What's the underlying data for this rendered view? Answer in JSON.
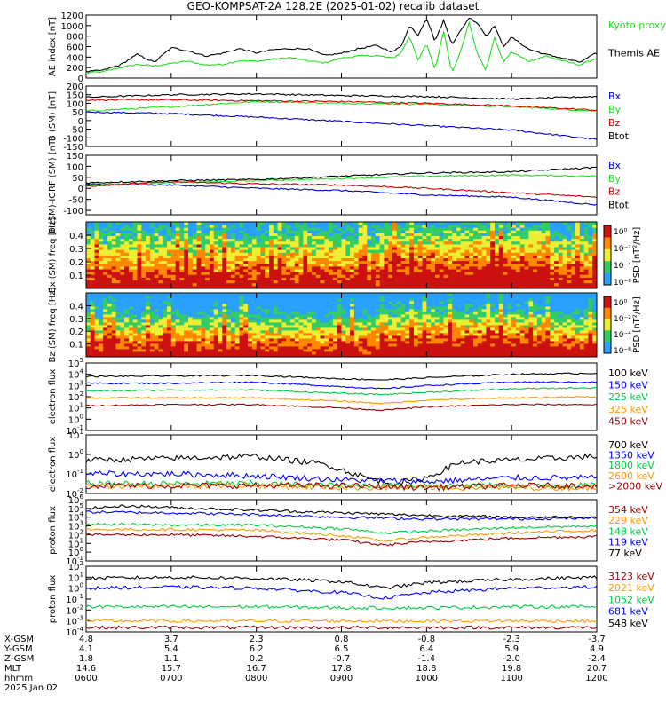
{
  "title": "GEO-KOMPSAT-2A 128.2E (2025-01-02) recalib dataset",
  "chart_data": [
    {
      "type": "line",
      "ylabel": "AE index [nT]",
      "ylim": [
        0,
        1200
      ],
      "yticks": [
        "0",
        "200",
        "400",
        "600",
        "800",
        "1000",
        "1200"
      ],
      "series": [
        {
          "name": "Kyoto proxy AE",
          "color": "#22dd22",
          "x": [
            6.0,
            6.2,
            6.4,
            6.6,
            6.8,
            7.0,
            7.2,
            7.4,
            7.6,
            7.8,
            8.0,
            8.2,
            8.4,
            8.6,
            8.8,
            9.0,
            9.2,
            9.4,
            9.6,
            9.7,
            9.8,
            9.9,
            10.0,
            10.1,
            10.2,
            10.3,
            10.4,
            10.5,
            10.6,
            10.7,
            10.8,
            10.9,
            11.0,
            11.2,
            11.4,
            11.6,
            11.8,
            12.0
          ],
          "y": [
            100,
            120,
            200,
            260,
            230,
            280,
            320,
            250,
            260,
            330,
            320,
            360,
            390,
            330,
            290,
            380,
            420,
            430,
            380,
            480,
            800,
            350,
            650,
            150,
            900,
            100,
            520,
            1050,
            450,
            150,
            780,
            300,
            500,
            320,
            420,
            330,
            250,
            380
          ]
        },
        {
          "name": "Themis AE",
          "color": "#000000",
          "x": [
            6.0,
            6.2,
            6.4,
            6.6,
            6.8,
            7.0,
            7.2,
            7.4,
            7.6,
            7.8,
            8.0,
            8.2,
            8.4,
            8.6,
            8.8,
            9.0,
            9.2,
            9.4,
            9.6,
            9.7,
            9.8,
            9.9,
            10.0,
            10.1,
            10.2,
            10.3,
            10.4,
            10.5,
            10.6,
            10.7,
            10.8,
            10.9,
            11.0,
            11.2,
            11.4,
            11.6,
            11.8,
            12.0
          ],
          "y": [
            120,
            150,
            250,
            450,
            300,
            580,
            520,
            420,
            470,
            560,
            480,
            540,
            560,
            560,
            430,
            470,
            560,
            620,
            500,
            600,
            1000,
            820,
            1150,
            700,
            1100,
            650,
            900,
            1150,
            1050,
            800,
            1000,
            600,
            780,
            550,
            450,
            380,
            300,
            480
          ]
        }
      ]
    },
    {
      "type": "line",
      "ylabel": "B (SM) [nT]",
      "ylim": [
        -150,
        200
      ],
      "yticks": [
        "-150",
        "-100",
        "-50",
        "0",
        "50",
        "100",
        "150",
        "200"
      ],
      "series": [
        {
          "name": "Bx",
          "color": "#0000cc",
          "x": [
            6,
            7,
            8,
            9,
            10,
            11,
            12
          ],
          "y": [
            50,
            40,
            20,
            -5,
            -30,
            -55,
            -110
          ]
        },
        {
          "name": "By",
          "color": "#22dd22",
          "x": [
            6,
            7,
            8,
            9,
            10,
            11,
            12
          ],
          "y": [
            55,
            80,
            110,
            100,
            95,
            80,
            55
          ]
        },
        {
          "name": "Bz",
          "color": "#cc0000",
          "x": [
            6,
            7,
            8,
            9,
            10,
            11,
            12
          ],
          "y": [
            120,
            120,
            115,
            110,
            100,
            85,
            60
          ]
        },
        {
          "name": "Btot",
          "color": "#000000",
          "x": [
            6,
            7,
            8,
            9,
            10,
            11,
            12
          ],
          "y": [
            135,
            150,
            155,
            145,
            140,
            125,
            140
          ]
        }
      ]
    },
    {
      "type": "line",
      "ylabel": "B (SM)-IGRF (SM) [nT]",
      "ylim": [
        -120,
        150
      ],
      "yticks": [
        "-100",
        "-50",
        "0",
        "50",
        "100",
        "150"
      ],
      "series": [
        {
          "name": "Bx",
          "color": "#0000cc",
          "x": [
            6,
            7,
            8,
            9,
            10,
            11,
            12
          ],
          "y": [
            20,
            15,
            0,
            -10,
            -30,
            -40,
            -75
          ]
        },
        {
          "name": "By",
          "color": "#22dd22",
          "x": [
            6,
            7,
            8,
            9,
            10,
            11,
            12
          ],
          "y": [
            15,
            25,
            35,
            45,
            55,
            60,
            55
          ]
        },
        {
          "name": "Bz",
          "color": "#cc0000",
          "x": [
            6,
            7,
            8,
            9,
            10,
            11,
            12
          ],
          "y": [
            10,
            30,
            20,
            15,
            0,
            -20,
            -40
          ]
        },
        {
          "name": "Btot",
          "color": "#000000",
          "x": [
            6,
            7,
            8,
            9,
            10,
            11,
            12
          ],
          "y": [
            25,
            35,
            40,
            55,
            70,
            75,
            95
          ]
        }
      ]
    },
    {
      "type": "heatmap",
      "ylabel": "Bx (SM) freq [Hz]",
      "yticks": [
        "0.1",
        "0.2",
        "0.3",
        "0.4"
      ],
      "colorbar_label": "PSD [nT²/Hz]",
      "colorbar_ticks": [
        "10⁰",
        "10⁻²",
        "10⁻⁴",
        "10⁻⁶"
      ]
    },
    {
      "type": "heatmap",
      "ylabel": "Bz (SM) freq [Hz]",
      "yticks": [
        "0.1",
        "0.2",
        "0.3",
        "0.4"
      ],
      "colorbar_label": "PSD [nT²/Hz]",
      "colorbar_ticks": [
        "10⁰",
        "10⁻²",
        "10⁻⁴",
        "10⁻⁶"
      ]
    },
    {
      "type": "line",
      "log": true,
      "ylabel": "electron flux",
      "ylim_exp": [
        -1,
        5
      ],
      "series": [
        {
          "name": "100 keV",
          "color": "#000000",
          "x": [
            6,
            7,
            8,
            9,
            9.5,
            10,
            11,
            12
          ],
          "y": [
            3.8,
            3.85,
            3.9,
            3.6,
            3.5,
            3.7,
            4.0,
            4.1
          ]
        },
        {
          "name": "150 keV",
          "color": "#0000ff",
          "x": [
            6,
            7,
            8,
            9,
            9.5,
            10,
            11,
            12
          ],
          "y": [
            3.2,
            3.2,
            3.3,
            2.9,
            2.7,
            3.0,
            3.3,
            3.3
          ]
        },
        {
          "name": "225 keV",
          "color": "#00cc44",
          "x": [
            6,
            7,
            8,
            9,
            9.5,
            10,
            11,
            12
          ],
          "y": [
            2.5,
            2.6,
            2.6,
            2.3,
            2.2,
            2.4,
            2.7,
            2.8
          ]
        },
        {
          "name": "325 keV",
          "color": "#ff9900",
          "x": [
            6,
            7,
            8,
            9,
            9.5,
            10,
            11,
            12
          ],
          "y": [
            1.9,
            1.9,
            1.9,
            1.6,
            1.4,
            1.7,
            1.9,
            2.0
          ]
        },
        {
          "name": "450 keV",
          "color": "#990000",
          "x": [
            6,
            7,
            8,
            9,
            9.5,
            10,
            11,
            12
          ],
          "y": [
            1.2,
            1.3,
            1.3,
            1.0,
            0.8,
            1.1,
            1.3,
            1.3
          ]
        }
      ]
    },
    {
      "type": "line",
      "log": true,
      "ylabel": "electron flux",
      "ylim_exp": [
        -2,
        1
      ],
      "series": [
        {
          "name": "700 keV",
          "color": "#000000",
          "x": [
            6,
            7,
            8,
            8.8,
            9.3,
            9.6,
            10,
            10.4,
            11,
            12
          ],
          "y": [
            -0.3,
            -0.2,
            -0.1,
            -0.5,
            -1.2,
            -1.5,
            -1.2,
            -0.4,
            -0.3,
            -0.1
          ]
        },
        {
          "name": "1350 keV",
          "color": "#0000ff",
          "x": [
            6,
            7,
            8,
            9,
            10,
            11,
            12
          ],
          "y": [
            -1.0,
            -1.0,
            -1.1,
            -1.3,
            -1.4,
            -1.2,
            -1.2
          ]
        },
        {
          "name": "1800 keV",
          "color": "#00cc44",
          "x": [
            6,
            7,
            8,
            9,
            10,
            11,
            12
          ],
          "y": [
            -1.5,
            -1.5,
            -1.5,
            -1.6,
            -1.6,
            -1.6,
            -1.6
          ]
        },
        {
          "name": "2600 keV",
          "color": "#ff9900",
          "x": [
            6,
            7,
            8,
            9,
            10,
            11,
            12
          ],
          "y": [
            -1.6,
            -1.6,
            -1.6,
            -1.7,
            -1.7,
            -1.7,
            -1.7
          ]
        },
        {
          "name": ">2000 keV",
          "color": "#990000",
          "x": [
            6,
            7,
            8,
            9,
            10,
            11,
            12
          ],
          "y": [
            -1.6,
            -1.6,
            -1.6,
            -1.6,
            -1.7,
            -1.6,
            -1.6
          ]
        }
      ]
    },
    {
      "type": "line",
      "log": true,
      "ylabel": "proton flux",
      "ylim_exp": [
        -1,
        6
      ],
      "series": [
        {
          "name": "354 keV",
          "color": "#990000",
          "x": [
            6,
            7,
            8,
            9,
            9.5,
            10,
            11,
            12
          ],
          "y": [
            2.0,
            2.0,
            1.8,
            1.4,
            0.8,
            1.2,
            1.6,
            1.8
          ]
        },
        {
          "name": "229 keV",
          "color": "#ff9900",
          "x": [
            6,
            7,
            8,
            9,
            9.5,
            10,
            11,
            12
          ],
          "y": [
            2.6,
            2.6,
            2.5,
            1.9,
            1.3,
            1.7,
            2.2,
            2.5
          ]
        },
        {
          "name": "148 keV",
          "color": "#00cc44",
          "x": [
            6,
            7,
            8,
            9,
            9.5,
            10,
            11,
            12
          ],
          "y": [
            3.2,
            3.1,
            3.1,
            2.7,
            2.2,
            2.4,
            2.8,
            3.0
          ]
        },
        {
          "name": "119 keV",
          "color": "#0000ff",
          "x": [
            6,
            7,
            8,
            9,
            10,
            11,
            12
          ],
          "y": [
            4.6,
            4.5,
            4.3,
            4.0,
            3.8,
            3.8,
            3.9
          ]
        },
        {
          "name": "77 keV",
          "color": "#000000",
          "x": [
            6,
            6.5,
            7,
            8,
            9,
            10,
            11,
            12
          ],
          "y": [
            5.0,
            5.3,
            5.1,
            4.8,
            4.5,
            4.2,
            4.0,
            4.0
          ]
        }
      ]
    },
    {
      "type": "line",
      "log": true,
      "ylabel": "proton flux",
      "ylim_exp": [
        -4,
        2
      ],
      "series": [
        {
          "name": "3123 keV",
          "color": "#990000",
          "x": [
            6,
            7,
            8,
            9,
            10,
            11,
            12
          ],
          "y": [
            -3.6,
            -3.6,
            -3.6,
            -3.6,
            -3.6,
            -3.6,
            -3.6
          ]
        },
        {
          "name": "2021 keV",
          "color": "#ff9900",
          "x": [
            6,
            7,
            8,
            9,
            10,
            11,
            12
          ],
          "y": [
            -3.0,
            -3.0,
            -3.0,
            -3.0,
            -3.0,
            -3.0,
            -3.0
          ]
        },
        {
          "name": "1052 keV",
          "color": "#00cc44",
          "x": [
            6,
            7,
            8,
            9,
            10,
            11,
            12
          ],
          "y": [
            -1.7,
            -1.7,
            -1.7,
            -1.8,
            -1.8,
            -1.7,
            -1.7
          ]
        },
        {
          "name": "681 keV",
          "color": "#0000ff",
          "x": [
            6,
            7,
            8,
            9,
            9.5,
            10,
            11,
            12
          ],
          "y": [
            0.0,
            0.1,
            0.0,
            -0.4,
            -0.9,
            -0.4,
            0.0,
            0.1
          ]
        },
        {
          "name": "548 keV",
          "color": "#000000",
          "x": [
            6,
            7,
            8,
            9,
            9.5,
            10,
            11,
            12
          ],
          "y": [
            0.9,
            1.0,
            0.9,
            0.6,
            0.0,
            0.5,
            0.8,
            1.0
          ]
        }
      ]
    }
  ],
  "x_axis": {
    "row_labels": [
      "X-GSM",
      "Y-GSM",
      "Z-GSM",
      "MLT",
      "hhmm"
    ],
    "date": "2025 Jan 02",
    "columns": [
      [
        "4.8",
        "4.1",
        "1.8",
        "14.6",
        "0600"
      ],
      [
        "3.7",
        "5.4",
        "1.1",
        "15.7",
        "0700"
      ],
      [
        "2.3",
        "6.2",
        "0.2",
        "16.7",
        "0800"
      ],
      [
        "0.8",
        "6.5",
        "-0.7",
        "17.8",
        "0900"
      ],
      [
        "-0.8",
        "6.4",
        "-1.4",
        "18.8",
        "1000"
      ],
      [
        "-2.3",
        "5.9",
        "-2.0",
        "19.8",
        "1100"
      ],
      [
        "-3.7",
        "4.9",
        "-2.4",
        "20.7",
        "1200"
      ]
    ]
  }
}
